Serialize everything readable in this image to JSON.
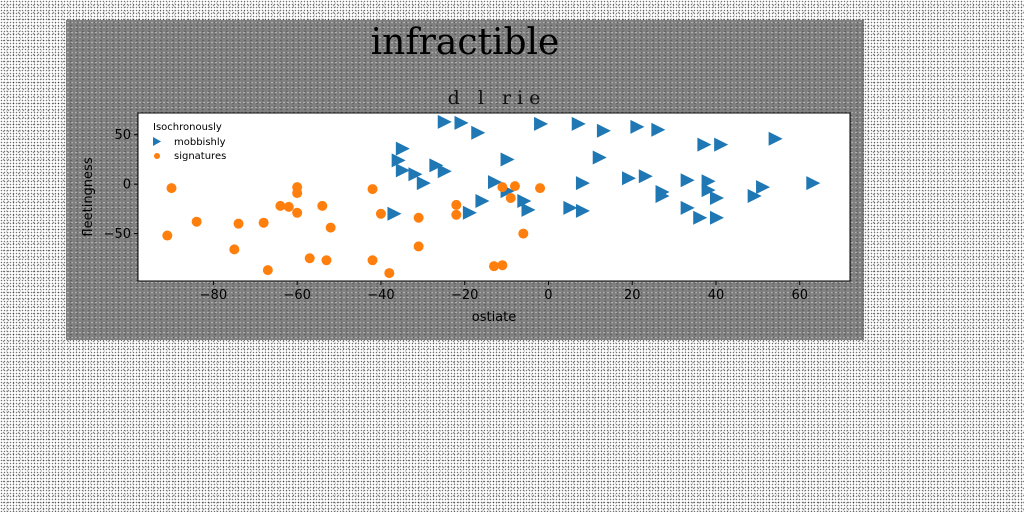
{
  "chart_data": {
    "type": "scatter",
    "title": "infractible",
    "subtitle": "d l rie",
    "xlabel": "ostiate",
    "ylabel": "fleetingness",
    "xlim": [
      -98,
      72
    ],
    "ylim": [
      -98,
      72
    ],
    "xticks": [
      -80,
      -60,
      -40,
      -20,
      0,
      20,
      40,
      60
    ],
    "yticks": [
      50,
      0,
      -50
    ],
    "grid": false,
    "legend": {
      "title": "Isochronously",
      "placement": "top-left"
    },
    "series": [
      {
        "name": "mobbishly",
        "marker": "triangle-right",
        "color": "#1f77b4",
        "points": [
          [
            -25,
            63
          ],
          [
            -21,
            62
          ],
          [
            -17,
            52
          ],
          [
            -2,
            61
          ],
          [
            7,
            61
          ],
          [
            13,
            54
          ],
          [
            21,
            58
          ],
          [
            26,
            55
          ],
          [
            37,
            40
          ],
          [
            41,
            40
          ],
          [
            54,
            46
          ],
          [
            -35,
            36
          ],
          [
            -36,
            24
          ],
          [
            -35,
            14
          ],
          [
            -32,
            10
          ],
          [
            -30,
            1
          ],
          [
            -27,
            19
          ],
          [
            -25,
            13
          ],
          [
            -10,
            25
          ],
          [
            12,
            27
          ],
          [
            -13,
            2
          ],
          [
            -10,
            -7
          ],
          [
            -6,
            -17
          ],
          [
            -5,
            -26
          ],
          [
            -16,
            -17
          ],
          [
            -19,
            -29
          ],
          [
            -37,
            -30
          ],
          [
            5,
            -24
          ],
          [
            8,
            -27
          ],
          [
            8,
            1
          ],
          [
            19,
            6
          ],
          [
            23,
            8
          ],
          [
            27,
            -8
          ],
          [
            27,
            -12
          ],
          [
            33,
            4
          ],
          [
            38,
            3
          ],
          [
            38,
            -6
          ],
          [
            40,
            -14
          ],
          [
            33,
            -24
          ],
          [
            36,
            -34
          ],
          [
            40,
            -34
          ],
          [
            49,
            -12
          ],
          [
            51,
            -3
          ],
          [
            63,
            1
          ]
        ]
      },
      {
        "name": "signatures",
        "marker": "circle",
        "color": "#ff7f0e",
        "points": [
          [
            -90,
            -4
          ],
          [
            -91,
            -52
          ],
          [
            -84,
            -38
          ],
          [
            -74,
            -40
          ],
          [
            -75,
            -66
          ],
          [
            -68,
            -39
          ],
          [
            -67,
            -87
          ],
          [
            -64,
            -22
          ],
          [
            -62,
            -23
          ],
          [
            -60,
            -9
          ],
          [
            -60,
            -3
          ],
          [
            -60,
            -29
          ],
          [
            -54,
            -22
          ],
          [
            -52,
            -44
          ],
          [
            -53,
            -77
          ],
          [
            -57,
            -75
          ],
          [
            -42,
            -5
          ],
          [
            -40,
            -30
          ],
          [
            -42,
            -77
          ],
          [
            -38,
            -90
          ],
          [
            -31,
            -34
          ],
          [
            -31,
            -63
          ],
          [
            -22,
            -21
          ],
          [
            -22,
            -31
          ],
          [
            -13,
            -83
          ],
          [
            -11,
            -82
          ],
          [
            -11,
            -3
          ],
          [
            -9,
            -14
          ],
          [
            -8,
            -2
          ],
          [
            -6,
            -50
          ],
          [
            -2,
            -4
          ]
        ]
      }
    ]
  }
}
